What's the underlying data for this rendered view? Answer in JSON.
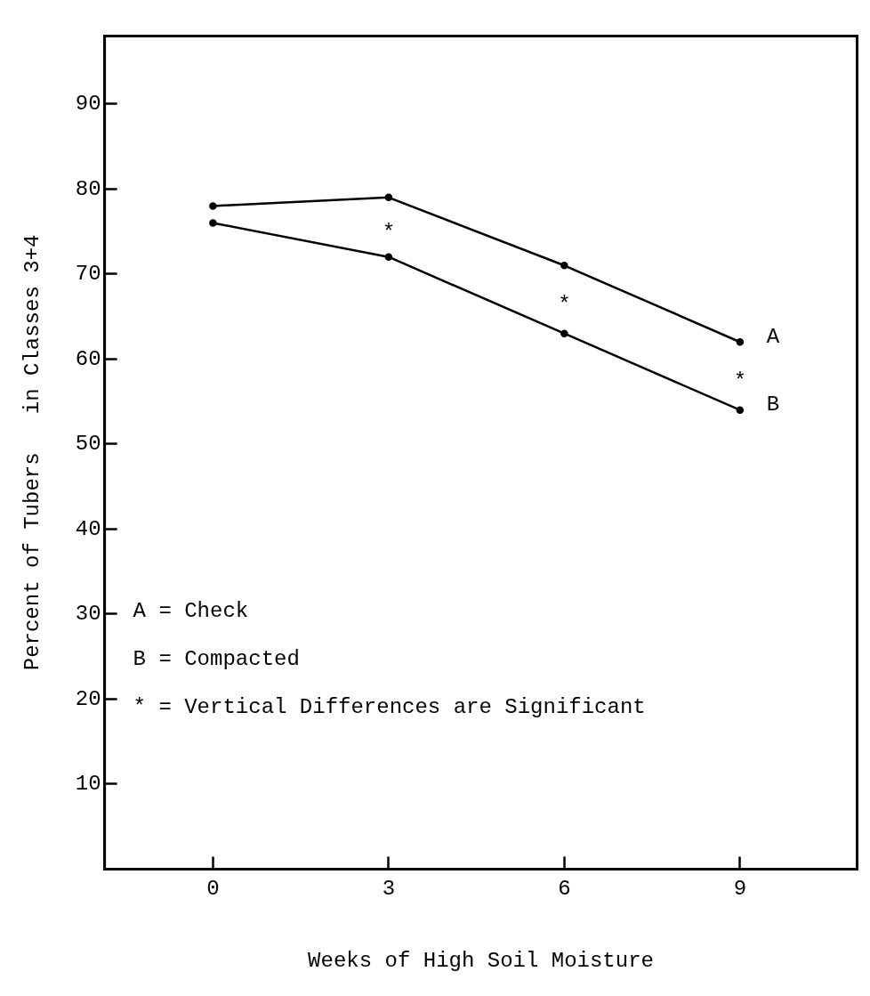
{
  "chart_data": {
    "type": "line",
    "xlabel": "Weeks of High Soil Moisture",
    "ylabel": "Percent of Tubers   in Classes 3+4",
    "x": [
      0,
      3,
      6,
      9
    ],
    "series": [
      {
        "name": "A",
        "color": "#000000",
        "values": [
          78,
          79,
          71,
          62
        ]
      },
      {
        "name": "B",
        "color": "#000000",
        "values": [
          76,
          72,
          63,
          54
        ]
      }
    ],
    "xlim": [
      -1.85,
      11
    ],
    "xticks": [
      0,
      3,
      6,
      9
    ],
    "ylim": [
      0,
      98
    ],
    "yticks": [
      10,
      20,
      30,
      40,
      50,
      60,
      70,
      80,
      90
    ],
    "grid": false,
    "legend": false,
    "marker": "circle",
    "line_style": "solid",
    "annotations": [
      "*",
      "*",
      "*",
      "A = Check",
      "B = Compacted",
      "* = Vertical Differences are Significant"
    ]
  }
}
